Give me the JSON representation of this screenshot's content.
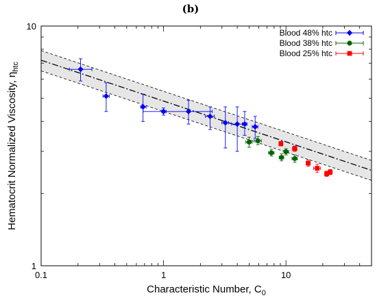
{
  "chart_data": {
    "type": "scatter",
    "panel_label": "(b)",
    "xlabel": "Characteristic Number, C",
    "xlabel_sub": "0",
    "ylabel": "Hematocrit Normalized Viscosity, η",
    "ylabel_sub": "htc",
    "x_scale": "log",
    "y_scale": "log",
    "xlim": [
      0.1,
      50
    ],
    "ylim": [
      1,
      10
    ],
    "x_tick_labels": [
      {
        "value": 0.1,
        "label": "0.1"
      },
      {
        "value": 1,
        "label": "1"
      },
      {
        "value": 10,
        "label": "10"
      }
    ],
    "y_tick_labels": [
      {
        "value": 1,
        "label": "1"
      },
      {
        "value": 10,
        "label": "10"
      }
    ],
    "grid": false,
    "legend_position": "top-right",
    "fit_line": {
      "style": "dash-dot",
      "points": [
        [
          0.1,
          7.2
        ],
        [
          50,
          2.5
        ]
      ],
      "band_upper": [
        [
          0.1,
          7.9
        ],
        [
          50,
          2.75
        ]
      ],
      "band_lower": [
        [
          0.1,
          6.5
        ],
        [
          50,
          2.27
        ]
      ]
    },
    "series": [
      {
        "name": "Blood 48% htc",
        "color": "#0000ee",
        "marker": "diamond",
        "points": [
          {
            "x": 0.21,
            "y": 6.6,
            "xerr": [
              0.17,
              0.26
            ],
            "yerr": [
              5.9,
              7.3
            ]
          },
          {
            "x": 0.34,
            "y": 5.1,
            "xerr": [
              0.32,
              0.36
            ],
            "yerr": [
              4.4,
              5.8
            ]
          },
          {
            "x": 0.68,
            "y": 4.6,
            "xerr": [
              0.65,
              0.72
            ],
            "yerr": [
              4.0,
              5.2
            ]
          },
          {
            "x": 1.0,
            "y": 4.4,
            "xerr": [
              0.97,
              1.05
            ],
            "yerr": [
              4.25,
              4.55
            ]
          },
          {
            "x": 1.6,
            "y": 4.4,
            "xerr": [
              0.68,
              2.5
            ],
            "yerr": [
              3.9,
              4.9
            ]
          },
          {
            "x": 2.4,
            "y": 4.2,
            "xerr": [
              2.2,
              2.6
            ],
            "yerr": [
              3.7,
              4.6
            ]
          },
          {
            "x": 3.2,
            "y": 3.95,
            "xerr": [
              3.0,
              3.4
            ],
            "yerr": [
              3.1,
              4.6
            ]
          },
          {
            "x": 4.0,
            "y": 3.9,
            "xerr": [
              3.6,
              4.4
            ],
            "yerr": [
              3.0,
              4.6
            ]
          },
          {
            "x": 4.6,
            "y": 3.9,
            "xerr": [
              4.4,
              4.8
            ],
            "yerr": [
              3.5,
              4.4
            ]
          },
          {
            "x": 5.6,
            "y": 3.8,
            "xerr": [
              5.3,
              5.9
            ],
            "yerr": [
              3.4,
              4.2
            ]
          }
        ]
      },
      {
        "name": "Blood 38% htc",
        "color": "#006400",
        "marker": "circle",
        "points": [
          {
            "x": 5.0,
            "y": 3.28,
            "xerr": [
              4.7,
              5.3
            ],
            "yerr": [
              3.12,
              3.44
            ]
          },
          {
            "x": 5.9,
            "y": 3.32,
            "xerr": [
              5.5,
              6.3
            ],
            "yerr": [
              3.2,
              3.46
            ]
          },
          {
            "x": 7.6,
            "y": 2.96,
            "xerr": [
              7.2,
              8.0
            ],
            "yerr": [
              2.87,
              3.06
            ]
          },
          {
            "x": 9.2,
            "y": 2.83,
            "xerr": [
              8.8,
              9.6
            ],
            "yerr": [
              2.74,
              2.93
            ]
          },
          {
            "x": 10.0,
            "y": 2.99,
            "xerr": [
              9.6,
              10.5
            ],
            "yerr": [
              2.9,
              3.08
            ]
          },
          {
            "x": 11.8,
            "y": 2.8,
            "xerr": [
              11.2,
              12.4
            ],
            "yerr": [
              2.7,
              2.9
            ]
          }
        ]
      },
      {
        "name": "Blood 25% htc",
        "color": "#ff0000",
        "marker": "square",
        "points": [
          {
            "x": 9.1,
            "y": 3.23,
            "xerr": [
              8.8,
              9.4
            ],
            "yerr": [
              3.16,
              3.3
            ]
          },
          {
            "x": 11.8,
            "y": 3.08,
            "xerr": [
              11.3,
              12.3
            ],
            "yerr": [
              3.0,
              3.16
            ]
          },
          {
            "x": 15.2,
            "y": 2.68,
            "xerr": [
              14.6,
              15.8
            ],
            "yerr": [
              2.6,
              2.76
            ]
          },
          {
            "x": 18.0,
            "y": 2.55,
            "xerr": [
              16.8,
              19.2
            ],
            "yerr": [
              2.45,
              2.65
            ]
          },
          {
            "x": 21.5,
            "y": 2.42,
            "xerr": [
              20.8,
              22.2
            ],
            "yerr": [
              2.36,
              2.48
            ]
          },
          {
            "x": 23.0,
            "y": 2.46,
            "xerr": [
              22.3,
              23.7
            ],
            "yerr": [
              2.4,
              2.52
            ]
          }
        ]
      }
    ]
  }
}
